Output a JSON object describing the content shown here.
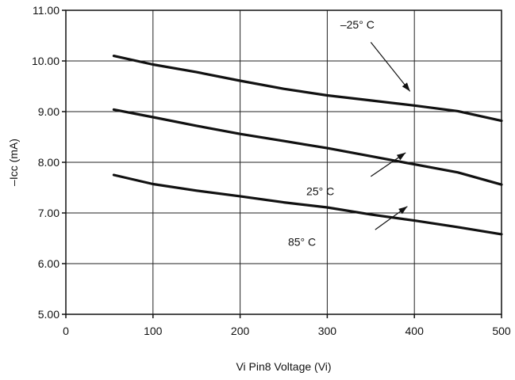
{
  "chart_data": {
    "type": "line",
    "title": "",
    "xlabel": "Vi Pin8 Voltage (Vi)",
    "ylabel": "–Icc (mA)",
    "xlim": [
      0,
      500
    ],
    "ylim": [
      5.0,
      11.0
    ],
    "x_ticks": [
      0,
      100,
      200,
      300,
      400,
      500
    ],
    "x_tick_labels": [
      "0",
      "100",
      "200",
      "300",
      "400",
      "500"
    ],
    "y_ticks": [
      5,
      6,
      7,
      8,
      9,
      10,
      11
    ],
    "y_tick_labels": [
      "5.00",
      "6.00",
      "7.00",
      "8.00",
      "9.00",
      "10.00",
      "11.00"
    ],
    "grid": true,
    "series": [
      {
        "name": "–25° C",
        "x": [
          55,
          100,
          150,
          200,
          250,
          300,
          350,
          400,
          450,
          500
        ],
        "values": [
          10.1,
          9.93,
          9.78,
          9.61,
          9.45,
          9.32,
          9.22,
          9.12,
          9.01,
          8.82
        ]
      },
      {
        "name": "25° C",
        "x": [
          55,
          100,
          150,
          200,
          250,
          300,
          350,
          400,
          450,
          500
        ],
        "values": [
          9.04,
          8.89,
          8.72,
          8.56,
          8.42,
          8.28,
          8.12,
          7.96,
          7.8,
          7.56
        ]
      },
      {
        "name": "85° C",
        "x": [
          55,
          100,
          150,
          200,
          250,
          300,
          350,
          400,
          450,
          500
        ],
        "values": [
          7.75,
          7.57,
          7.44,
          7.33,
          7.21,
          7.11,
          6.97,
          6.85,
          6.72,
          6.58
        ]
      }
    ],
    "annotations": [
      {
        "text": "–25° C",
        "text_at": [
          315,
          10.72
        ],
        "arrow_from": [
          350,
          10.37
        ],
        "arrow_to": [
          395,
          9.4
        ]
      },
      {
        "text": "25° C",
        "text_at": [
          276,
          7.43
        ],
        "arrow_from": [
          350,
          7.72
        ],
        "arrow_to": [
          390,
          8.19
        ]
      },
      {
        "text": "85° C",
        "text_at": [
          255,
          6.43
        ],
        "arrow_from": [
          355,
          6.67
        ],
        "arrow_to": [
          392,
          7.13
        ]
      }
    ]
  }
}
